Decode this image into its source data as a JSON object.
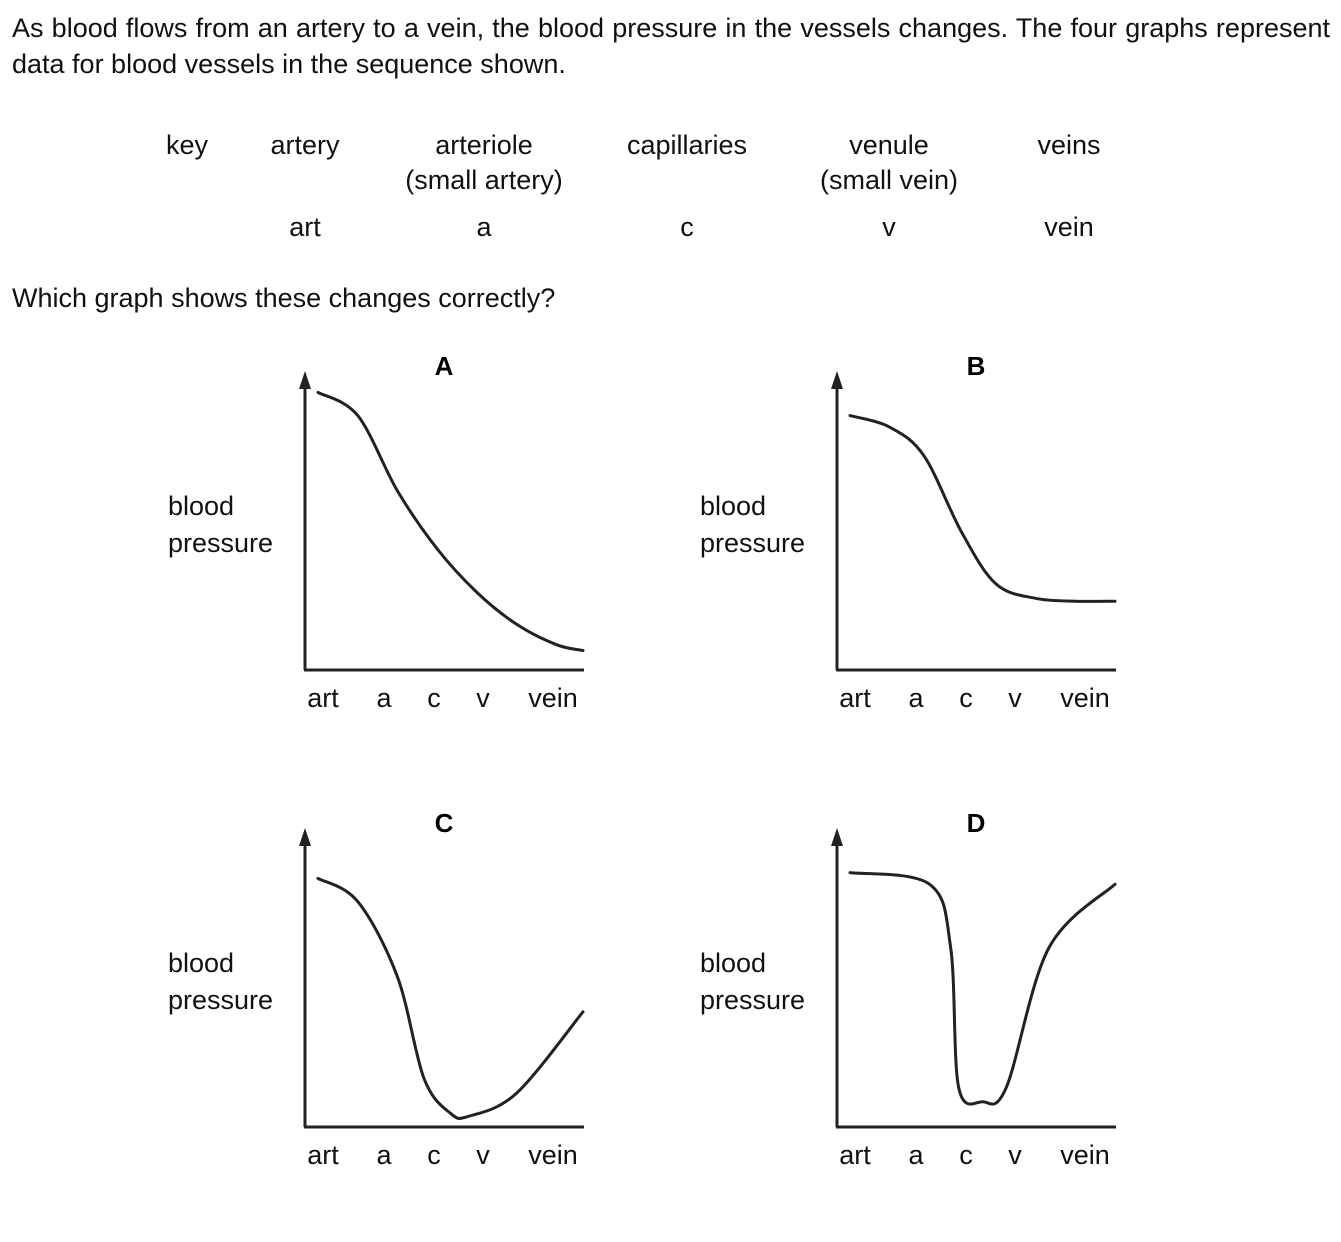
{
  "intro": "As blood flows from an artery to a vein, the blood pressure in the vessels changes. The four graphs represent data for blood vessels in the sequence shown.",
  "key": {
    "heading": "key",
    "columns": [
      {
        "name": "artery",
        "sub": "",
        "abbr": "art"
      },
      {
        "name": "arteriole",
        "sub": "(small artery)",
        "abbr": "a"
      },
      {
        "name": "capillaries",
        "sub": "",
        "abbr": "c"
      },
      {
        "name": "venule",
        "sub": "(small vein)",
        "abbr": "v"
      },
      {
        "name": "veins",
        "sub": "",
        "abbr": "vein"
      }
    ]
  },
  "question": "Which graph shows these changes correctly?",
  "chart_data": [
    {
      "type": "line",
      "title": "A",
      "ylabel": "blood pressure",
      "categories": [
        "art",
        "a",
        "c",
        "v",
        "vein"
      ],
      "ylim": [
        0,
        1
      ],
      "x": [
        0.0,
        0.15,
        0.3,
        0.45,
        0.6,
        0.75,
        0.9,
        1.0
      ],
      "values": [
        0.94,
        0.86,
        0.6,
        0.4,
        0.25,
        0.14,
        0.07,
        0.05
      ]
    },
    {
      "type": "line",
      "title": "B",
      "ylabel": "blood pressure",
      "categories": [
        "art",
        "a",
        "c",
        "v",
        "vein"
      ],
      "ylim": [
        0,
        1
      ],
      "x": [
        0.0,
        0.15,
        0.28,
        0.42,
        0.55,
        0.7,
        0.85,
        1.0
      ],
      "values": [
        0.86,
        0.82,
        0.72,
        0.46,
        0.28,
        0.23,
        0.22,
        0.22
      ]
    },
    {
      "type": "line",
      "title": "C",
      "ylabel": "blood pressure",
      "categories": [
        "art",
        "a",
        "c",
        "v",
        "vein"
      ],
      "ylim": [
        0,
        1
      ],
      "x": [
        0.0,
        0.15,
        0.3,
        0.4,
        0.5,
        0.57,
        0.75,
        1.0
      ],
      "values": [
        0.84,
        0.76,
        0.5,
        0.15,
        0.03,
        0.02,
        0.1,
        0.38
      ]
    },
    {
      "type": "line",
      "title": "D",
      "ylabel": "blood pressure",
      "categories": [
        "art",
        "a",
        "c",
        "v",
        "vein"
      ],
      "ylim": [
        0,
        1
      ],
      "x": [
        0.0,
        0.3,
        0.38,
        0.41,
        0.5,
        0.59,
        0.75,
        1.0
      ],
      "values": [
        0.86,
        0.82,
        0.6,
        0.12,
        0.07,
        0.12,
        0.6,
        0.82
      ]
    }
  ]
}
